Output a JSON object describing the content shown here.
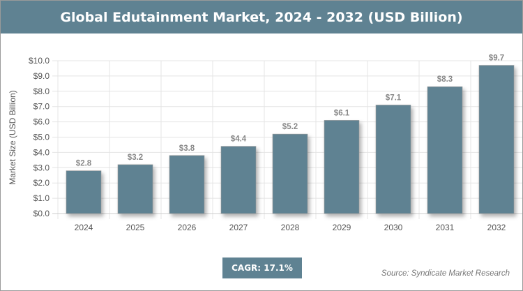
{
  "header": {
    "title": "Global Edutainment Market, 2024 - 2032 (USD Billion)"
  },
  "chart_data": {
    "type": "bar",
    "title": "Global Edutainment Market, 2024 - 2032 (USD Billion)",
    "xlabel": "",
    "ylabel": "Market Size (USD Billion)",
    "categories": [
      "2024",
      "2025",
      "2026",
      "2027",
      "2028",
      "2029",
      "2030",
      "2031",
      "2032"
    ],
    "values": [
      2.8,
      3.2,
      3.8,
      4.4,
      5.2,
      6.1,
      7.1,
      8.3,
      9.7
    ],
    "data_labels": [
      "$2.8",
      "$3.2",
      "$3.8",
      "$4.4",
      "$5.2",
      "$6.1",
      "$7.1",
      "$8.3",
      "$9.7"
    ],
    "ylim": [
      0,
      10
    ],
    "yticks": [
      "$0.0",
      "$1.0",
      "$2.0",
      "$3.0",
      "$4.0",
      "$5.0",
      "$6.0",
      "$7.0",
      "$8.0",
      "$9.0",
      "$10.0"
    ],
    "grid": true,
    "bar_color": "#5f8292"
  },
  "footer": {
    "cagr": "CAGR: 17.1%",
    "source": "Source: Syndicate Market Research"
  }
}
